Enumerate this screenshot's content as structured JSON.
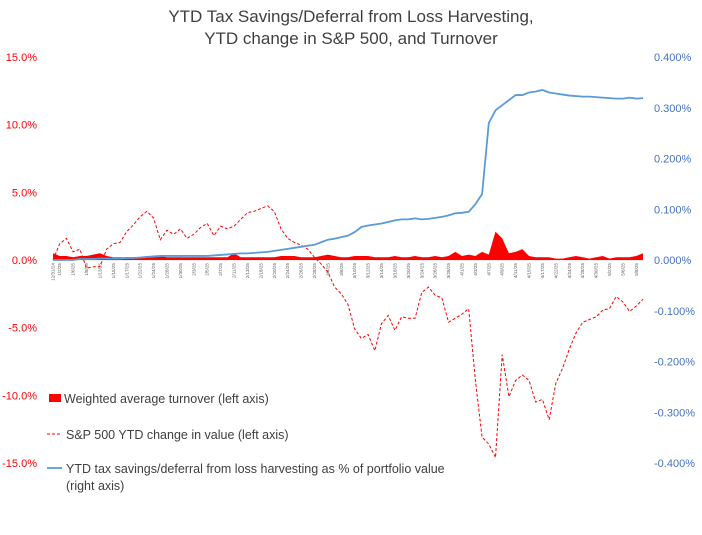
{
  "chart_data": {
    "type": "line",
    "title": [
      "YTD Tax Savings/Deferral from Loss Harvesting,",
      "YTD change in S&P 500, and Turnover"
    ],
    "left_axis": {
      "range": [
        -15,
        15
      ],
      "step": 5,
      "tick_labels": [
        "15.0%",
        "10.0%",
        "5.0%",
        "0.0%",
        "-5.0%",
        "-10.0%",
        "-15.0%"
      ],
      "color": "#ff0000"
    },
    "right_axis": {
      "range": [
        -0.4,
        0.4
      ],
      "step": 0.1,
      "tick_labels": [
        "0.400%",
        "0.300%",
        "0.200%",
        "0.100%",
        "0.000%",
        "-0.100%",
        "-0.200%",
        "-0.300%",
        "-0.400%"
      ],
      "color": "#4472c4"
    },
    "x": [
      "12/31/24",
      "1/2/25",
      "1/3/25",
      "1/6/25",
      "1/7/25",
      "1/8/25",
      "1/10/25",
      "1/13/25",
      "1/14/25",
      "1/15/25",
      "1/16/25",
      "1/17/25",
      "1/21/25",
      "1/22/25",
      "1/23/25",
      "1/24/25",
      "1/27/25",
      "1/28/25",
      "1/29/25",
      "1/30/25",
      "1/31/25",
      "2/3/25",
      "2/4/25",
      "2/5/25",
      "2/6/25",
      "2/7/25",
      "2/10/25",
      "2/11/25",
      "2/12/25",
      "2/13/25",
      "2/14/25",
      "2/18/25",
      "2/19/25",
      "2/20/25",
      "2/21/25",
      "2/24/25",
      "2/25/25",
      "2/26/25",
      "2/27/25",
      "2/28/25",
      "3/3/25",
      "3/4/25",
      "3/5/25",
      "3/6/25",
      "3/7/25",
      "3/10/25",
      "3/11/25",
      "3/12/25",
      "3/13/25",
      "3/14/25",
      "3/17/25",
      "3/18/25",
      "3/19/25",
      "3/20/25",
      "3/21/25",
      "3/24/25",
      "3/25/25",
      "3/26/25",
      "3/27/25",
      "3/28/25",
      "3/31/25",
      "4/1/25",
      "4/2/25",
      "4/3/25",
      "4/4/25",
      "4/7/25",
      "4/8/25",
      "4/9/25",
      "4/10/25",
      "4/11/25",
      "4/14/25",
      "4/15/25",
      "4/16/25",
      "4/17/25",
      "4/21/25",
      "4/22/25",
      "4/23/25",
      "4/24/25",
      "4/25/25",
      "4/28/25",
      "4/29/25",
      "4/30/25",
      "5/1/25",
      "5/2/25",
      "5/5/25",
      "5/6/25",
      "5/7/25",
      "5/8/25",
      "5/9/25"
    ],
    "x_tick_labels": [
      "12/31/24",
      "1/2/25",
      "1/6/25",
      "1/8/25",
      "1/13/25",
      "1/15/25",
      "1/17/25",
      "1/22/25",
      "1/24/25",
      "1/28/25",
      "1/30/25",
      "2/3/25",
      "2/5/25",
      "2/7/25",
      "2/11/25",
      "2/13/25",
      "2/18/25",
      "2/20/25",
      "2/24/25",
      "2/26/25",
      "2/28/25",
      "3/4/25",
      "3/6/25",
      "3/10/25",
      "3/12/25",
      "3/14/25",
      "3/18/25",
      "3/20/25",
      "3/24/25",
      "3/26/25",
      "3/28/25",
      "4/1/25",
      "4/3/25",
      "4/7/25",
      "4/9/25",
      "4/11/25",
      "4/15/25",
      "4/17/25",
      "4/22/25",
      "4/24/25",
      "4/28/25",
      "4/30/25",
      "5/2/25",
      "5/6/25",
      "5/8/25"
    ],
    "series": [
      {
        "name": "Weighted average turnover (left axis)",
        "type": "area",
        "axis": "left",
        "color": "#ff0000",
        "values": [
          0.5,
          0.3,
          0.3,
          0.2,
          0.3,
          0.3,
          0.4,
          0.5,
          0.3,
          0.2,
          0.2,
          0.2,
          0.2,
          0.2,
          0.3,
          0.2,
          0.3,
          0.2,
          0.2,
          0.2,
          0.2,
          0.2,
          0.2,
          0.2,
          0.2,
          0.2,
          0.2,
          0.5,
          0.2,
          0.2,
          0.2,
          0.2,
          0.2,
          0.2,
          0.3,
          0.3,
          0.3,
          0.2,
          0.2,
          0.2,
          0.3,
          0.4,
          0.3,
          0.2,
          0.2,
          0.3,
          0.3,
          0.3,
          0.2,
          0.2,
          0.2,
          0.3,
          0.2,
          0.2,
          0.3,
          0.2,
          0.2,
          0.3,
          0.2,
          0.3,
          0.6,
          0.3,
          0.4,
          0.3,
          0.6,
          0.4,
          2.1,
          1.6,
          0.5,
          0.6,
          0.8,
          0.3,
          0.2,
          0.2,
          0.2,
          0.1,
          0.1,
          0.2,
          0.3,
          0.2,
          0.1,
          0.2,
          0.3,
          0.1,
          0.2,
          0.2,
          0.2,
          0.3,
          0.5
        ]
      },
      {
        "name": "S&P 500 YTD change in value (left axis)",
        "type": "line",
        "axis": "left",
        "dash": true,
        "color": "#ff0000",
        "values": [
          0,
          1.2,
          1.6,
          0.6,
          0.8,
          -0.6,
          -0.5,
          -0.5,
          0.8,
          1.2,
          1.3,
          2.1,
          2.6,
          3.2,
          3.6,
          3.1,
          1.5,
          2.2,
          1.9,
          2.3,
          1.6,
          1.9,
          2.4,
          2.7,
          1.8,
          2.5,
          2.3,
          2.5,
          3.0,
          3.5,
          3.6,
          3.8,
          4.0,
          3.6,
          2.3,
          1.6,
          1.3,
          1.1,
          0.8,
          0.2,
          -0.3,
          -0.9,
          -2.0,
          -2.5,
          -3.3,
          -5.1,
          -5.8,
          -5.5,
          -6.7,
          -4.7,
          -4.1,
          -5.2,
          -4.2,
          -4.3,
          -4.3,
          -2.4,
          -2.0,
          -2.6,
          -2.8,
          -4.6,
          -4.3,
          -4.0,
          -3.6,
          -8.9,
          -13.1,
          -13.6,
          -14.6,
          -7.0,
          -10.1,
          -8.9,
          -8.5,
          -8.9,
          -10.5,
          -10.3,
          -11.8,
          -9.1,
          -8.0,
          -6.6,
          -5.4,
          -4.6,
          -4.4,
          -4.2,
          -3.7,
          -3.6,
          -2.7,
          -3.1,
          -3.8,
          -3.4,
          -2.9
        ]
      },
      {
        "name": "YTD tax savings/deferral from loss harvesting as % of portfolio value (right axis)",
        "type": "line",
        "axis": "right",
        "color": "#5b9bd5",
        "values": [
          0.0,
          0.0,
          0.0,
          0.0,
          0.002,
          0.002,
          0.002,
          0.003,
          0.003,
          0.003,
          0.003,
          0.004,
          0.004,
          0.005,
          0.006,
          0.007,
          0.008,
          0.008,
          0.008,
          0.008,
          0.008,
          0.008,
          0.008,
          0.008,
          0.009,
          0.01,
          0.011,
          0.012,
          0.013,
          0.013,
          0.014,
          0.015,
          0.016,
          0.018,
          0.02,
          0.022,
          0.024,
          0.026,
          0.028,
          0.03,
          0.035,
          0.04,
          0.042,
          0.045,
          0.048,
          0.055,
          0.065,
          0.068,
          0.07,
          0.072,
          0.075,
          0.078,
          0.08,
          0.08,
          0.082,
          0.08,
          0.081,
          0.083,
          0.085,
          0.088,
          0.092,
          0.093,
          0.095,
          0.11,
          0.13,
          0.27,
          0.295,
          0.305,
          0.315,
          0.325,
          0.325,
          0.33,
          0.332,
          0.335,
          0.33,
          0.328,
          0.326,
          0.324,
          0.323,
          0.322,
          0.322,
          0.321,
          0.32,
          0.319,
          0.318,
          0.318,
          0.32,
          0.318,
          0.319
        ]
      }
    ],
    "legend_position": "bottom-left",
    "grid": false
  }
}
